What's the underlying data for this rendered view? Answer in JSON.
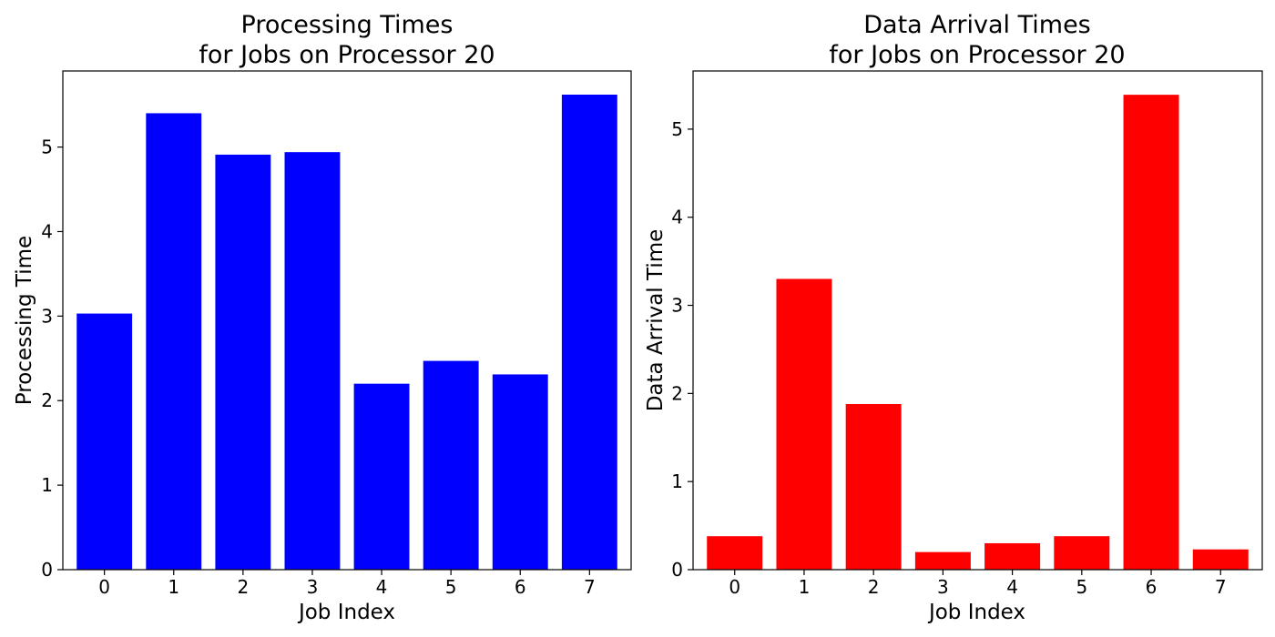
{
  "chart_data": [
    {
      "type": "bar",
      "title_lines": [
        "Processing Times",
        "for Jobs on Processor 20"
      ],
      "xlabel": "Job Index",
      "ylabel": "Processing Time",
      "categories": [
        "0",
        "1",
        "2",
        "3",
        "4",
        "5",
        "6",
        "7"
      ],
      "values": [
        3.03,
        5.4,
        4.91,
        4.94,
        2.2,
        2.47,
        2.31,
        5.62
      ],
      "ylim": [
        0,
        5.9
      ],
      "yticks": [
        0,
        1,
        2,
        3,
        4,
        5
      ],
      "color": "#0000ff",
      "grid": false
    },
    {
      "type": "bar",
      "title_lines": [
        "Data Arrival Times",
        "for Jobs on Processor 20"
      ],
      "xlabel": "Job Index",
      "ylabel": "Data Arrival Time",
      "categories": [
        "0",
        "1",
        "2",
        "3",
        "4",
        "5",
        "6",
        "7"
      ],
      "values": [
        0.38,
        3.3,
        1.88,
        0.2,
        0.3,
        0.38,
        5.39,
        0.23
      ],
      "ylim": [
        0,
        5.66
      ],
      "yticks": [
        0,
        1,
        2,
        3,
        4,
        5
      ],
      "color": "#ff0000",
      "grid": false
    }
  ]
}
